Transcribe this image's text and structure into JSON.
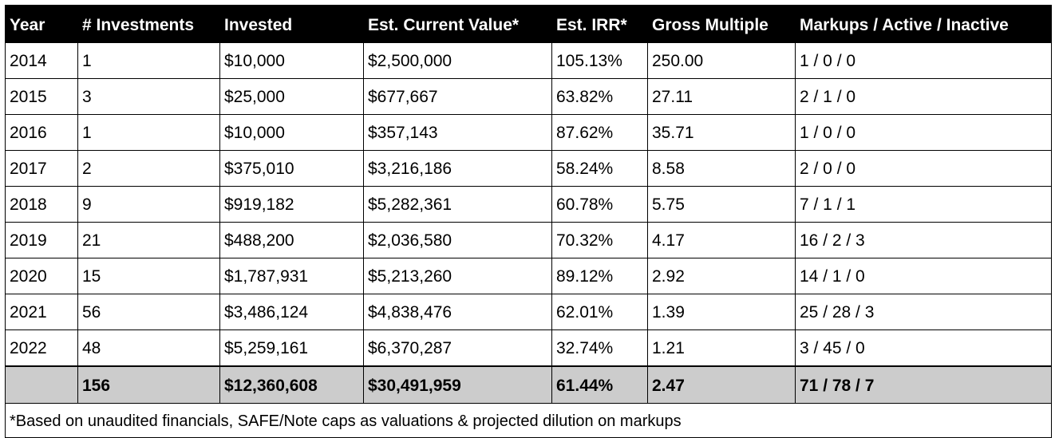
{
  "table": {
    "headers": [
      "Year",
      "# Investments",
      "Invested",
      "Est. Current Value*",
      "Est. IRR*",
      "Gross Multiple",
      "Markups / Active / Inactive"
    ],
    "rows": [
      [
        "2014",
        "1",
        "$10,000",
        "$2,500,000",
        "105.13%",
        "250.00",
        "1 / 0 / 0"
      ],
      [
        "2015",
        "3",
        "$25,000",
        "$677,667",
        "63.82%",
        "27.11",
        "2 / 1 / 0"
      ],
      [
        "2016",
        "1",
        "$10,000",
        "$357,143",
        "87.62%",
        "35.71",
        "1 / 0 / 0"
      ],
      [
        "2017",
        "2",
        "$375,010",
        "$3,216,186",
        "58.24%",
        "8.58",
        "2 / 0 / 0"
      ],
      [
        "2018",
        "9",
        "$919,182",
        "$5,282,361",
        "60.78%",
        "5.75",
        "7 / 1 / 1"
      ],
      [
        "2019",
        "21",
        "$488,200",
        "$2,036,580",
        "70.32%",
        "4.17",
        "16 / 2 / 3"
      ],
      [
        "2020",
        "15",
        "$1,787,931",
        "$5,213,260",
        "89.12%",
        "2.92",
        "14 / 1 / 0"
      ],
      [
        "2021",
        "56",
        "$3,486,124",
        "$4,838,476",
        "62.01%",
        "1.39",
        "25 / 28 / 3"
      ],
      [
        "2022",
        "48",
        "$5,259,161",
        "$6,370,287",
        "32.74%",
        "1.21",
        "3 / 45 / 0"
      ]
    ],
    "total": [
      "",
      "156",
      "$12,360,608",
      "$30,491,959",
      "61.44%",
      "2.47",
      "71 / 78 / 7"
    ],
    "footnote": "*Based on unaudited financials, SAFE/Note caps as valuations & projected dilution on markups"
  },
  "colors": {
    "header_background": "#000000",
    "header_text": "#ffffff",
    "total_row_background": "#cccccc",
    "grid_lines": "#000000"
  }
}
